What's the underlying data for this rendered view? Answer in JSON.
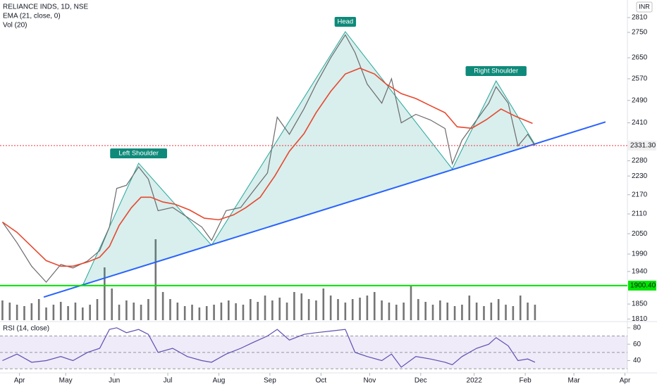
{
  "chart_data": {
    "type": "line",
    "title": "RELIANCE INDS, 1D, NSE",
    "currency": "INR",
    "log_scale": true,
    "xlim": [
      -8,
      250
    ],
    "xticks": [
      {
        "value": 0,
        "label": "Apr"
      },
      {
        "value": 19,
        "label": "May"
      },
      {
        "value": 39,
        "label": "Jun"
      },
      {
        "value": 61,
        "label": "Jul"
      },
      {
        "value": 82,
        "label": "Aug"
      },
      {
        "value": 103,
        "label": "Sep"
      },
      {
        "value": 124,
        "label": "Oct"
      },
      {
        "value": 144,
        "label": "Nov"
      },
      {
        "value": 165,
        "label": "Dec"
      },
      {
        "value": 187,
        "label": "2022"
      },
      {
        "value": 208,
        "label": "Feb"
      },
      {
        "value": 228,
        "label": "Mar"
      },
      {
        "value": 249,
        "label": "Apr"
      }
    ],
    "ylim": [
      1807,
      2883
    ],
    "yticks": [
      2810,
      2750,
      2650,
      2570,
      2490,
      2410,
      2280,
      2230,
      2170,
      2110,
      2050,
      1990,
      1940,
      1850,
      1810
    ],
    "x": [
      -7,
      -1,
      5,
      11,
      17,
      22,
      28,
      33,
      37,
      40,
      44,
      49,
      53,
      57,
      63,
      69,
      75,
      79,
      85,
      91,
      96,
      102,
      106,
      111,
      117,
      122,
      128,
      134,
      138,
      143,
      149,
      153,
      157,
      163,
      169,
      175,
      178,
      182,
      188,
      193,
      196,
      201,
      205,
      209,
      212
    ],
    "price": {
      "color": "#6b6b6b",
      "values": [
        2085,
        2023,
        1955,
        1910,
        1960,
        1950,
        1970,
        2000,
        2070,
        2190,
        2200,
        2260,
        2220,
        2120,
        2130,
        2100,
        2070,
        2030,
        2120,
        2130,
        2180,
        2240,
        2430,
        2370,
        2460,
        2550,
        2650,
        2740,
        2670,
        2550,
        2480,
        2570,
        2410,
        2440,
        2420,
        2390,
        2270,
        2350,
        2420,
        2480,
        2540,
        2480,
        2330,
        2370,
        2331.3
      ]
    },
    "series": [
      {
        "name": "EMA (21, close, 0)",
        "color": "#e8472f",
        "x": [
          -7,
          -1,
          5,
          11,
          17,
          22,
          28,
          33,
          37,
          41,
          46,
          50,
          54,
          59,
          64,
          70,
          76,
          82,
          88,
          93,
          99,
          105,
          111,
          117,
          122,
          128,
          134,
          140,
          146,
          151,
          157,
          163,
          169,
          175,
          180,
          186,
          192,
          198,
          204,
          211
        ],
        "values": [
          2085,
          2054,
          2012,
          1971,
          1955,
          1955,
          1967,
          1981,
          2012,
          2075,
          2129,
          2162,
          2162,
          2147,
          2140,
          2122,
          2097,
          2092,
          2107,
          2129,
          2162,
          2230,
          2312,
          2372,
          2446,
          2523,
          2588,
          2610,
          2588,
          2549,
          2515,
          2497,
          2471,
          2446,
          2396,
          2391,
          2421,
          2459,
          2433,
          2408
        ]
      }
    ],
    "pattern": {
      "color": "#26a69a",
      "x": [
        26,
        49,
        79,
        134,
        178,
        196,
        212
      ],
      "values": [
        1901,
        2272,
        2016,
        2753,
        2253,
        2562,
        2335
      ]
    },
    "trendline": {
      "color": "#2962ff",
      "x": [
        10,
        241
      ],
      "values": [
        1869,
        2413
      ]
    },
    "annotations": [
      {
        "text": "Left Shoulder",
        "x": 49,
        "value": 2272
      },
      {
        "text": "Head",
        "x": 134,
        "value": 2753
      },
      {
        "text": "Right Shoulder",
        "x": 196,
        "value": 2562
      }
    ],
    "price_lines": [
      {
        "value": 2331.3,
        "label": "2331.30",
        "color": "#f23645"
      },
      {
        "value": 1900.4,
        "label": "1900.40",
        "color": "#00e600"
      }
    ],
    "volume": {
      "name": "Vol (20)",
      "color": "#5d5d5d",
      "vlim": [
        0,
        100
      ],
      "x": [
        -7,
        -4,
        -1,
        2,
        5,
        8,
        11,
        14,
        17,
        20,
        23,
        26,
        29,
        32,
        35,
        38,
        41,
        44,
        47,
        50,
        53,
        56,
        59,
        62,
        65,
        68,
        71,
        74,
        77,
        80,
        83,
        86,
        89,
        92,
        95,
        98,
        101,
        104,
        107,
        110,
        113,
        116,
        119,
        122,
        125,
        128,
        131,
        134,
        137,
        140,
        143,
        146,
        149,
        152,
        155,
        158,
        161,
        164,
        167,
        170,
        173,
        176,
        179,
        182,
        185,
        188,
        191,
        194,
        197,
        200,
        203,
        206,
        209,
        212
      ],
      "values": [
        28,
        25,
        22,
        20,
        24,
        30,
        18,
        22,
        26,
        20,
        25,
        18,
        22,
        30,
        75,
        45,
        22,
        28,
        25,
        22,
        30,
        115,
        40,
        30,
        25,
        20,
        22,
        18,
        20,
        22,
        25,
        28,
        24,
        22,
        30,
        26,
        35,
        28,
        32,
        25,
        40,
        38,
        30,
        28,
        45,
        35,
        30,
        25,
        30,
        32,
        35,
        40,
        28,
        25,
        22,
        25,
        50,
        30,
        26,
        22,
        28,
        25,
        20,
        22,
        35,
        25,
        20,
        25,
        30,
        22,
        20,
        35,
        25,
        22
      ]
    },
    "rsi": {
      "name": "RSI (14, close)",
      "color": "#5e4fb3",
      "ylim": [
        25,
        85
      ],
      "yticks": [
        40,
        60,
        80
      ],
      "levels": [
        30,
        50,
        70
      ],
      "values": [
        40,
        48,
        38,
        40,
        45,
        40,
        50,
        55,
        78,
        80,
        74,
        78,
        72,
        50,
        55,
        45,
        40,
        38,
        48,
        55,
        62,
        70,
        78,
        65,
        72,
        74,
        76,
        78,
        50,
        45,
        40,
        48,
        32,
        45,
        42,
        38,
        35,
        45,
        55,
        60,
        68,
        58,
        40,
        42,
        38
      ]
    }
  }
}
